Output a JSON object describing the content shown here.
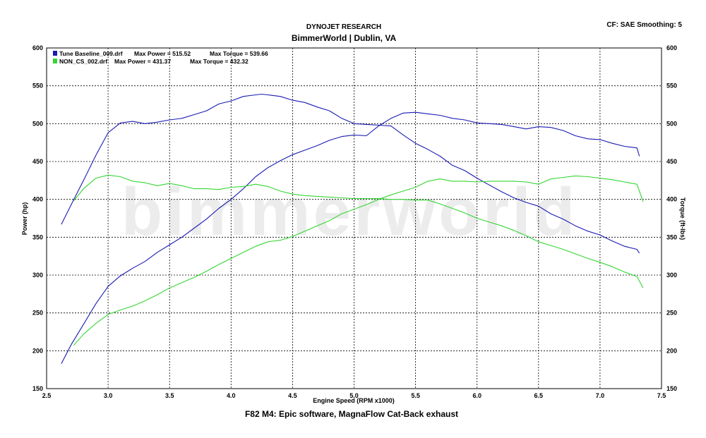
{
  "header": {
    "company": "DYNOJET RESEARCH",
    "shop": "BimmerWorld | Dublin, VA",
    "settings": "CF: SAE  Smoothing: 5"
  },
  "footer": {
    "caption": "F82 M4: Epic software, MagnaFlow Cat-Back exhaust"
  },
  "watermark": "bimmerworld",
  "chart_data": {
    "type": "line",
    "xlabel": "Engine Speed (RPM x1000)",
    "ylabel": "Power (hp)",
    "y2label": "Torque (ft-lbs)",
    "xlim": [
      2.5,
      7.5
    ],
    "ylim": [
      150,
      600
    ],
    "y2lim": [
      150,
      600
    ],
    "xticks": [
      "2.5",
      "3.0",
      "3.5",
      "4.0",
      "4.5",
      "5.0",
      "5.5",
      "6.0",
      "6.5",
      "7.0",
      "7.5"
    ],
    "yticks": [
      "150",
      "200",
      "250",
      "300",
      "350",
      "400",
      "450",
      "500",
      "550",
      "600"
    ],
    "grid": true,
    "legend_position": "top-left",
    "legend": [
      {
        "run": "Tune Baseline_009.drf",
        "power_label": "Max Power = 515.52",
        "torque_label": "Max Torque = 539.66",
        "color": "#1a1ab4"
      },
      {
        "run": "NON_CS_002.drf",
        "power_label": "Max Power = 431.37",
        "torque_label": "Max Torque = 432.32",
        "color": "#33d633"
      }
    ],
    "series": [
      {
        "name": "Tune Baseline_009.drf",
        "quantity": "power",
        "color": "#1a1ab4",
        "x": [
          2.62,
          2.7,
          2.8,
          2.9,
          3.0,
          3.1,
          3.2,
          3.3,
          3.4,
          3.5,
          3.6,
          3.7,
          3.8,
          3.9,
          4.0,
          4.1,
          4.2,
          4.3,
          4.4,
          4.5,
          4.6,
          4.7,
          4.8,
          4.9,
          5.0,
          5.1,
          5.2,
          5.3,
          5.4,
          5.5,
          5.6,
          5.7,
          5.8,
          5.9,
          6.0,
          6.1,
          6.2,
          6.3,
          6.4,
          6.5,
          6.6,
          6.7,
          6.8,
          6.9,
          7.0,
          7.1,
          7.2,
          7.3,
          7.32
        ],
        "y": [
          183,
          208,
          235,
          262,
          285,
          299,
          309,
          318,
          330,
          340,
          350,
          362,
          374,
          388,
          400,
          414,
          430,
          442,
          451,
          459,
          465,
          471,
          478,
          483,
          485,
          484,
          497,
          507,
          514,
          515,
          513,
          511,
          507,
          505,
          501,
          500,
          499,
          496,
          493,
          496,
          495,
          491,
          484,
          480,
          479,
          474,
          470,
          468,
          457
        ]
      },
      {
        "name": "Tune Baseline_009.drf",
        "quantity": "torque",
        "color": "#1a1ab4",
        "x": [
          2.62,
          2.7,
          2.8,
          2.9,
          3.0,
          3.1,
          3.2,
          3.3,
          3.4,
          3.5,
          3.6,
          3.7,
          3.8,
          3.9,
          4.0,
          4.1,
          4.2,
          4.25,
          4.3,
          4.4,
          4.5,
          4.6,
          4.7,
          4.8,
          4.9,
          5.0,
          5.1,
          5.2,
          5.3,
          5.4,
          5.5,
          5.6,
          5.7,
          5.8,
          5.9,
          6.0,
          6.1,
          6.2,
          6.3,
          6.4,
          6.5,
          6.6,
          6.7,
          6.8,
          6.9,
          7.0,
          7.1,
          7.2,
          7.3,
          7.32
        ],
        "y": [
          367,
          393,
          425,
          458,
          488,
          501,
          503,
          500,
          502,
          505,
          507,
          512,
          517,
          526,
          530,
          536,
          538,
          539,
          538,
          536,
          531,
          528,
          522,
          517,
          507,
          500,
          499,
          498,
          497,
          485,
          474,
          466,
          457,
          445,
          438,
          428,
          419,
          410,
          402,
          396,
          391,
          381,
          374,
          365,
          358,
          353,
          345,
          338,
          334,
          329
        ]
      },
      {
        "name": "NON_CS_002.drf",
        "quantity": "power",
        "color": "#33d633",
        "x": [
          2.72,
          2.8,
          2.9,
          3.0,
          3.1,
          3.2,
          3.3,
          3.4,
          3.5,
          3.6,
          3.7,
          3.8,
          3.9,
          4.0,
          4.1,
          4.2,
          4.3,
          4.4,
          4.5,
          4.6,
          4.7,
          4.8,
          4.9,
          5.0,
          5.1,
          5.2,
          5.3,
          5.4,
          5.5,
          5.6,
          5.7,
          5.8,
          5.9,
          6.0,
          6.1,
          6.2,
          6.3,
          6.4,
          6.5,
          6.6,
          6.7,
          6.8,
          6.9,
          7.0,
          7.1,
          7.2,
          7.3,
          7.35
        ],
        "y": [
          207,
          222,
          236,
          248,
          254,
          259,
          266,
          274,
          283,
          290,
          297,
          305,
          314,
          322,
          330,
          338,
          344,
          346,
          351,
          358,
          365,
          372,
          381,
          387,
          393,
          400,
          406,
          411,
          416,
          424,
          427,
          424,
          424,
          423,
          424,
          424,
          424,
          423,
          420,
          427,
          429,
          431,
          430,
          428,
          426,
          423,
          420,
          397
        ]
      },
      {
        "name": "NON_CS_002.drf",
        "quantity": "torque",
        "color": "#33d633",
        "x": [
          2.72,
          2.8,
          2.9,
          3.0,
          3.1,
          3.2,
          3.3,
          3.4,
          3.5,
          3.6,
          3.7,
          3.8,
          3.9,
          4.0,
          4.1,
          4.2,
          4.3,
          4.4,
          4.5,
          4.6,
          4.7,
          4.8,
          4.9,
          5.0,
          5.1,
          5.2,
          5.3,
          5.4,
          5.5,
          5.6,
          5.7,
          5.8,
          5.9,
          6.0,
          6.1,
          6.2,
          6.3,
          6.4,
          6.5,
          6.6,
          6.7,
          6.8,
          6.9,
          7.0,
          7.1,
          7.2,
          7.3,
          7.35
        ],
        "y": [
          398,
          414,
          428,
          432,
          430,
          424,
          422,
          418,
          421,
          418,
          414,
          414,
          413,
          416,
          417,
          420,
          417,
          411,
          407,
          405,
          404,
          403,
          402,
          401,
          401,
          401,
          400,
          400,
          399,
          399,
          394,
          388,
          382,
          375,
          370,
          365,
          359,
          352,
          344,
          339,
          334,
          328,
          322,
          317,
          311,
          304,
          298,
          283
        ]
      }
    ]
  }
}
